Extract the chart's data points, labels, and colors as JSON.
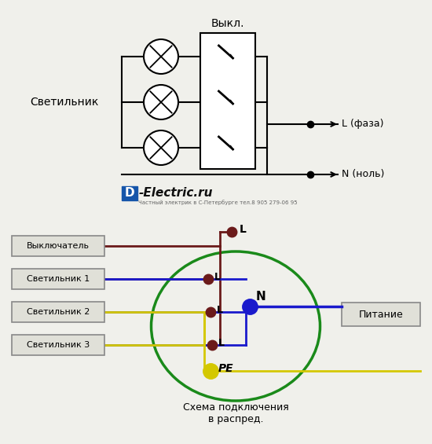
{
  "bg_color": "#f0f0eb",
  "vykl_label": "Выкл.",
  "svetilnik_label": "Светильник",
  "L_faza_label": "L (фаза)",
  "N_nol_label": "N (ноль)",
  "boxes_labels": [
    "Выключатель",
    "Светильник 1",
    "Светильник 2",
    "Светильник 3"
  ],
  "pitanie_label": "Питание",
  "bottom_label1": "Схема подключения",
  "bottom_label2": "в распред.",
  "logo_d": "D",
  "logo_rest": "-Electric.ru",
  "subtitle_text": "Частный электрик в С-Петербурге тел.8 905 279-06 95",
  "wire_brown": "#6b1a1a",
  "wire_blue": "#1a1acc",
  "wire_yellow": "#d4c800",
  "wire_green": "#1a8a1a",
  "wire_black": "#111111",
  "dot_blue": "#1a1acc",
  "dot_yellow": "#d4c800",
  "dot_brown": "#6b1a1a",
  "box_fill": "#e0e0d8",
  "box_edge": "#888888"
}
